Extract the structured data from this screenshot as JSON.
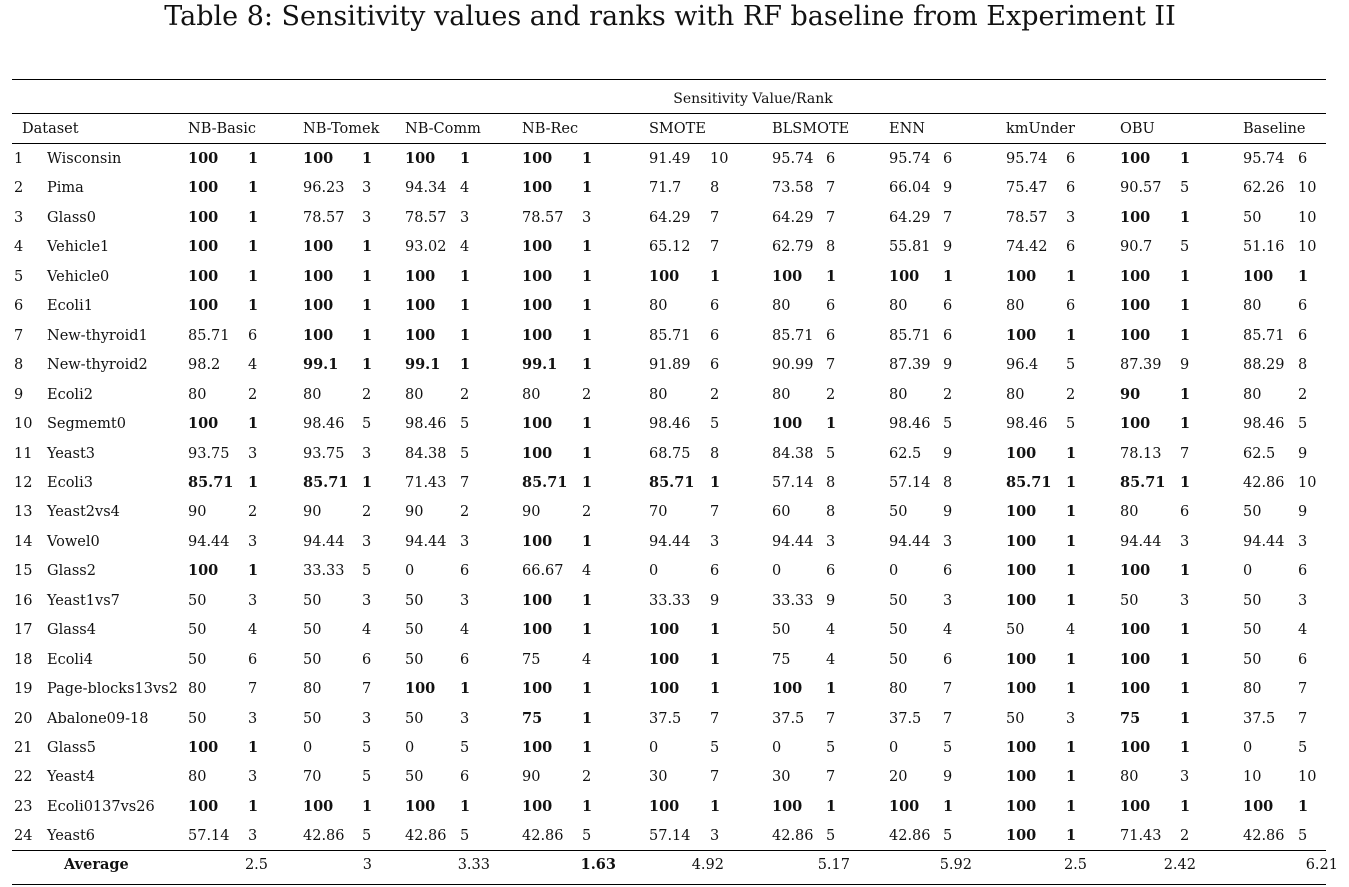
{
  "caption": "Table 8: Sensitivity values and ranks with RF baseline from Experiment II",
  "group_header": "Sensitivity Value/Rank",
  "columns": {
    "dataset": "Dataset",
    "methods": [
      "NB-Basic",
      "NB-Tomek",
      "NB-Comm",
      "NB-Rec",
      "SMOTE",
      "BLSMOTE",
      "ENN",
      "kmUnder",
      "OBU",
      "Baseline"
    ]
  },
  "rows": [
    {
      "idx": "1",
      "name": "Wisconsin",
      "cells": [
        [
          "100",
          "1",
          true
        ],
        [
          "100",
          "1",
          true
        ],
        [
          "100",
          "1",
          true
        ],
        [
          "100",
          "1",
          true
        ],
        [
          "91.49",
          "10",
          false
        ],
        [
          "95.74",
          "6",
          false
        ],
        [
          "95.74",
          "6",
          false
        ],
        [
          "95.74",
          "6",
          false
        ],
        [
          "100",
          "1",
          true
        ],
        [
          "95.74",
          "6",
          false
        ]
      ]
    },
    {
      "idx": "2",
      "name": "Pima",
      "cells": [
        [
          "100",
          "1",
          true
        ],
        [
          "96.23",
          "3",
          false
        ],
        [
          "94.34",
          "4",
          false
        ],
        [
          "100",
          "1",
          true
        ],
        [
          "71.7",
          "8",
          false
        ],
        [
          "73.58",
          "7",
          false
        ],
        [
          "66.04",
          "9",
          false
        ],
        [
          "75.47",
          "6",
          false
        ],
        [
          "90.57",
          "5",
          false
        ],
        [
          "62.26",
          "10",
          false
        ]
      ]
    },
    {
      "idx": "3",
      "name": "Glass0",
      "cells": [
        [
          "100",
          "1",
          true
        ],
        [
          "78.57",
          "3",
          false
        ],
        [
          "78.57",
          "3",
          false
        ],
        [
          "78.57",
          "3",
          false
        ],
        [
          "64.29",
          "7",
          false
        ],
        [
          "64.29",
          "7",
          false
        ],
        [
          "64.29",
          "7",
          false
        ],
        [
          "78.57",
          "3",
          false
        ],
        [
          "100",
          "1",
          true
        ],
        [
          "50",
          "10",
          false
        ]
      ]
    },
    {
      "idx": "4",
      "name": "Vehicle1",
      "cells": [
        [
          "100",
          "1",
          true
        ],
        [
          "100",
          "1",
          true
        ],
        [
          "93.02",
          "4",
          false
        ],
        [
          "100",
          "1",
          true
        ],
        [
          "65.12",
          "7",
          false
        ],
        [
          "62.79",
          "8",
          false
        ],
        [
          "55.81",
          "9",
          false
        ],
        [
          "74.42",
          "6",
          false
        ],
        [
          "90.7",
          "5",
          false
        ],
        [
          "51.16",
          "10",
          false
        ]
      ]
    },
    {
      "idx": "5",
      "name": "Vehicle0",
      "cells": [
        [
          "100",
          "1",
          true
        ],
        [
          "100",
          "1",
          true
        ],
        [
          "100",
          "1",
          true
        ],
        [
          "100",
          "1",
          true
        ],
        [
          "100",
          "1",
          true
        ],
        [
          "100",
          "1",
          true
        ],
        [
          "100",
          "1",
          true
        ],
        [
          "100",
          "1",
          true
        ],
        [
          "100",
          "1",
          true
        ],
        [
          "100",
          "1",
          true
        ]
      ]
    },
    {
      "idx": "6",
      "name": "Ecoli1",
      "cells": [
        [
          "100",
          "1",
          true
        ],
        [
          "100",
          "1",
          true
        ],
        [
          "100",
          "1",
          true
        ],
        [
          "100",
          "1",
          true
        ],
        [
          "80",
          "6",
          false
        ],
        [
          "80",
          "6",
          false
        ],
        [
          "80",
          "6",
          false
        ],
        [
          "80",
          "6",
          false
        ],
        [
          "100",
          "1",
          true
        ],
        [
          "80",
          "6",
          false
        ]
      ]
    },
    {
      "idx": "7",
      "name": "New-thyroid1",
      "cells": [
        [
          "85.71",
          "6",
          false
        ],
        [
          "100",
          "1",
          true
        ],
        [
          "100",
          "1",
          true
        ],
        [
          "100",
          "1",
          true
        ],
        [
          "85.71",
          "6",
          false
        ],
        [
          "85.71",
          "6",
          false
        ],
        [
          "85.71",
          "6",
          false
        ],
        [
          "100",
          "1",
          true
        ],
        [
          "100",
          "1",
          true
        ],
        [
          "85.71",
          "6",
          false
        ]
      ]
    },
    {
      "idx": "8",
      "name": "New-thyroid2",
      "cells": [
        [
          "98.2",
          "4",
          false
        ],
        [
          "99.1",
          "1",
          true
        ],
        [
          "99.1",
          "1",
          true
        ],
        [
          "99.1",
          "1",
          true
        ],
        [
          "91.89",
          "6",
          false
        ],
        [
          "90.99",
          "7",
          false
        ],
        [
          "87.39",
          "9",
          false
        ],
        [
          "96.4",
          "5",
          false
        ],
        [
          "87.39",
          "9",
          false
        ],
        [
          "88.29",
          "8",
          false
        ]
      ]
    },
    {
      "idx": "9",
      "name": "Ecoli2",
      "cells": [
        [
          "80",
          "2",
          false
        ],
        [
          "80",
          "2",
          false
        ],
        [
          "80",
          "2",
          false
        ],
        [
          "80",
          "2",
          false
        ],
        [
          "80",
          "2",
          false
        ],
        [
          "80",
          "2",
          false
        ],
        [
          "80",
          "2",
          false
        ],
        [
          "80",
          "2",
          false
        ],
        [
          "90",
          "1",
          true
        ],
        [
          "80",
          "2",
          false
        ]
      ]
    },
    {
      "idx": "10",
      "name": "Segmemt0",
      "cells": [
        [
          "100",
          "1",
          true
        ],
        [
          "98.46",
          "5",
          false
        ],
        [
          "98.46",
          "5",
          false
        ],
        [
          "100",
          "1",
          true
        ],
        [
          "98.46",
          "5",
          false
        ],
        [
          "100",
          "1",
          true
        ],
        [
          "98.46",
          "5",
          false
        ],
        [
          "98.46",
          "5",
          false
        ],
        [
          "100",
          "1",
          true
        ],
        [
          "98.46",
          "5",
          false
        ]
      ]
    },
    {
      "idx": "11",
      "name": "Yeast3",
      "cells": [
        [
          "93.75",
          "3",
          false
        ],
        [
          "93.75",
          "3",
          false
        ],
        [
          "84.38",
          "5",
          false
        ],
        [
          "100",
          "1",
          true
        ],
        [
          "68.75",
          "8",
          false
        ],
        [
          "84.38",
          "5",
          false
        ],
        [
          "62.5",
          "9",
          false
        ],
        [
          "100",
          "1",
          true
        ],
        [
          "78.13",
          "7",
          false
        ],
        [
          "62.5",
          "9",
          false
        ]
      ]
    },
    {
      "idx": "12",
      "name": "Ecoli3",
      "cells": [
        [
          "85.71",
          "1",
          true
        ],
        [
          "85.71",
          "1",
          true
        ],
        [
          "71.43",
          "7",
          false
        ],
        [
          "85.71",
          "1",
          true
        ],
        [
          "85.71",
          "1",
          true
        ],
        [
          "57.14",
          "8",
          false
        ],
        [
          "57.14",
          "8",
          false
        ],
        [
          "85.71",
          "1",
          true
        ],
        [
          "85.71",
          "1",
          true
        ],
        [
          "42.86",
          "10",
          false
        ]
      ]
    },
    {
      "idx": "13",
      "name": "Yeast2vs4",
      "cells": [
        [
          "90",
          "2",
          false
        ],
        [
          "90",
          "2",
          false
        ],
        [
          "90",
          "2",
          false
        ],
        [
          "90",
          "2",
          false
        ],
        [
          "70",
          "7",
          false
        ],
        [
          "60",
          "8",
          false
        ],
        [
          "50",
          "9",
          false
        ],
        [
          "100",
          "1",
          true
        ],
        [
          "80",
          "6",
          false
        ],
        [
          "50",
          "9",
          false
        ]
      ]
    },
    {
      "idx": "14",
      "name": "Vowel0",
      "cells": [
        [
          "94.44",
          "3",
          false
        ],
        [
          "94.44",
          "3",
          false
        ],
        [
          "94.44",
          "3",
          false
        ],
        [
          "100",
          "1",
          true
        ],
        [
          "94.44",
          "3",
          false
        ],
        [
          "94.44",
          "3",
          false
        ],
        [
          "94.44",
          "3",
          false
        ],
        [
          "100",
          "1",
          true
        ],
        [
          "94.44",
          "3",
          false
        ],
        [
          "94.44",
          "3",
          false
        ]
      ]
    },
    {
      "idx": "15",
      "name": "Glass2",
      "cells": [
        [
          "100",
          "1",
          true
        ],
        [
          "33.33",
          "5",
          false
        ],
        [
          "0",
          "6",
          false
        ],
        [
          "66.67",
          "4",
          false
        ],
        [
          "0",
          "6",
          false
        ],
        [
          "0",
          "6",
          false
        ],
        [
          "0",
          "6",
          false
        ],
        [
          "100",
          "1",
          true
        ],
        [
          "100",
          "1",
          true
        ],
        [
          "0",
          "6",
          false
        ]
      ]
    },
    {
      "idx": "16",
      "name": "Yeast1vs7",
      "cells": [
        [
          "50",
          "3",
          false
        ],
        [
          "50",
          "3",
          false
        ],
        [
          "50",
          "3",
          false
        ],
        [
          "100",
          "1",
          true
        ],
        [
          "33.33",
          "9",
          false
        ],
        [
          "33.33",
          "9",
          false
        ],
        [
          "50",
          "3",
          false
        ],
        [
          "100",
          "1",
          true
        ],
        [
          "50",
          "3",
          false
        ],
        [
          "50",
          "3",
          false
        ]
      ]
    },
    {
      "idx": "17",
      "name": "Glass4",
      "cells": [
        [
          "50",
          "4",
          false
        ],
        [
          "50",
          "4",
          false
        ],
        [
          "50",
          "4",
          false
        ],
        [
          "100",
          "1",
          true
        ],
        [
          "100",
          "1",
          true
        ],
        [
          "50",
          "4",
          false
        ],
        [
          "50",
          "4",
          false
        ],
        [
          "50",
          "4",
          false
        ],
        [
          "100",
          "1",
          true
        ],
        [
          "50",
          "4",
          false
        ]
      ]
    },
    {
      "idx": "18",
      "name": "Ecoli4",
      "cells": [
        [
          "50",
          "6",
          false
        ],
        [
          "50",
          "6",
          false
        ],
        [
          "50",
          "6",
          false
        ],
        [
          "75",
          "4",
          false
        ],
        [
          "100",
          "1",
          true
        ],
        [
          "75",
          "4",
          false
        ],
        [
          "50",
          "6",
          false
        ],
        [
          "100",
          "1",
          true
        ],
        [
          "100",
          "1",
          true
        ],
        [
          "50",
          "6",
          false
        ]
      ]
    },
    {
      "idx": "19",
      "name": "Page-blocks13vs2",
      "cells": [
        [
          "80",
          "7",
          false
        ],
        [
          "80",
          "7",
          false
        ],
        [
          "100",
          "1",
          true
        ],
        [
          "100",
          "1",
          true
        ],
        [
          "100",
          "1",
          true
        ],
        [
          "100",
          "1",
          true
        ],
        [
          "80",
          "7",
          false
        ],
        [
          "100",
          "1",
          true
        ],
        [
          "100",
          "1",
          true
        ],
        [
          "80",
          "7",
          false
        ]
      ]
    },
    {
      "idx": "20",
      "name": "Abalone09-18",
      "cells": [
        [
          "50",
          "3",
          false
        ],
        [
          "50",
          "3",
          false
        ],
        [
          "50",
          "3",
          false
        ],
        [
          "75",
          "1",
          true
        ],
        [
          "37.5",
          "7",
          false
        ],
        [
          "37.5",
          "7",
          false
        ],
        [
          "37.5",
          "7",
          false
        ],
        [
          "50",
          "3",
          false
        ],
        [
          "75",
          "1",
          true
        ],
        [
          "37.5",
          "7",
          false
        ]
      ]
    },
    {
      "idx": "21",
      "name": "Glass5",
      "cells": [
        [
          "100",
          "1",
          true
        ],
        [
          "0",
          "5",
          false
        ],
        [
          "0",
          "5",
          false
        ],
        [
          "100",
          "1",
          true
        ],
        [
          "0",
          "5",
          false
        ],
        [
          "0",
          "5",
          false
        ],
        [
          "0",
          "5",
          false
        ],
        [
          "100",
          "1",
          true
        ],
        [
          "100",
          "1",
          true
        ],
        [
          "0",
          "5",
          false
        ]
      ]
    },
    {
      "idx": "22",
      "name": "Yeast4",
      "cells": [
        [
          "80",
          "3",
          false
        ],
        [
          "70",
          "5",
          false
        ],
        [
          "50",
          "6",
          false
        ],
        [
          "90",
          "2",
          false
        ],
        [
          "30",
          "7",
          false
        ],
        [
          "30",
          "7",
          false
        ],
        [
          "20",
          "9",
          false
        ],
        [
          "100",
          "1",
          true
        ],
        [
          "80",
          "3",
          false
        ],
        [
          "10",
          "10",
          false
        ]
      ]
    },
    {
      "idx": "23",
      "name": "Ecoli0137vs26",
      "cells": [
        [
          "100",
          "1",
          true
        ],
        [
          "100",
          "1",
          true
        ],
        [
          "100",
          "1",
          true
        ],
        [
          "100",
          "1",
          true
        ],
        [
          "100",
          "1",
          true
        ],
        [
          "100",
          "1",
          true
        ],
        [
          "100",
          "1",
          true
        ],
        [
          "100",
          "1",
          true
        ],
        [
          "100",
          "1",
          true
        ],
        [
          "100",
          "1",
          true
        ]
      ]
    },
    {
      "idx": "24",
      "name": "Yeast6",
      "cells": [
        [
          "57.14",
          "3",
          false
        ],
        [
          "42.86",
          "5",
          false
        ],
        [
          "42.86",
          "5",
          false
        ],
        [
          "42.86",
          "5",
          false
        ],
        [
          "57.14",
          "3",
          false
        ],
        [
          "42.86",
          "5",
          false
        ],
        [
          "42.86",
          "5",
          false
        ],
        [
          "100",
          "1",
          true
        ],
        [
          "71.43",
          "2",
          false
        ],
        [
          "42.86",
          "5",
          false
        ]
      ]
    }
  ],
  "average": {
    "label": "Average",
    "values": [
      [
        "2.5",
        false
      ],
      [
        "3",
        false
      ],
      [
        "3.33",
        false
      ],
      [
        "1.63",
        true
      ],
      [
        "4.92",
        false
      ],
      [
        "5.17",
        false
      ],
      [
        "5.92",
        false
      ],
      [
        "2.5",
        false
      ],
      [
        "2.42",
        false
      ],
      [
        "6.21",
        false
      ]
    ]
  }
}
